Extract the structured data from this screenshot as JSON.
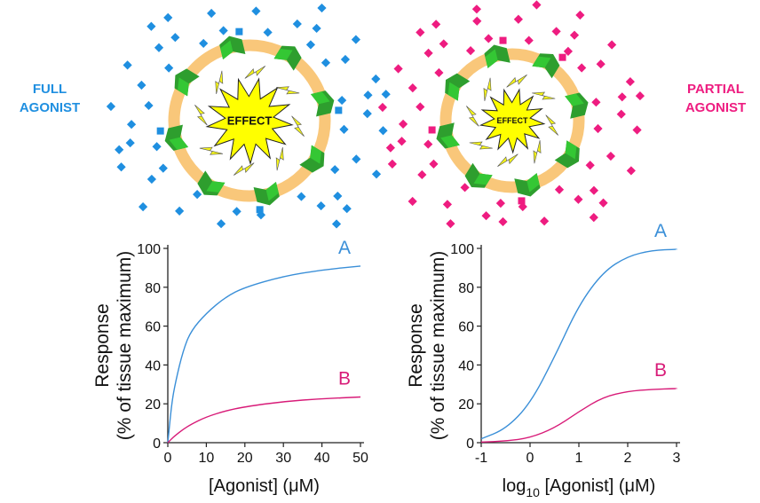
{
  "left_panel": {
    "label_line1": "FULL",
    "label_line2": "AGONIST",
    "label_color": "#1f8fe0",
    "effect_text": "EFFECT"
  },
  "right_panel": {
    "label_line1": "PARTIAL",
    "label_line2": "AGONIST",
    "label_color": "#ee1c80",
    "effect_text": "EFFECT"
  },
  "colors": {
    "membrane": "#f9c77a",
    "receptor_dark": "#2e9e2e",
    "receptor_light": "#34c734",
    "lightning": "#f5f51a",
    "full_agonist": "#1f8fe0",
    "partial_agonist": "#ee1c80",
    "curve_a": "#3a8fd8",
    "curve_b": "#d81b78"
  },
  "chart_data": [
    {
      "type": "line",
      "xlabel": "[Agonist] (μM)",
      "ylabel_line1": "Response",
      "ylabel_line2": "(% of tissue maximum)",
      "xlim": [
        0,
        50
      ],
      "ylim": [
        0,
        100
      ],
      "xticks": [
        0,
        10,
        20,
        30,
        40,
        50
      ],
      "yticks": [
        0,
        20,
        40,
        60,
        80,
        100
      ],
      "grid": false,
      "series": [
        {
          "name": "A",
          "x": [
            0,
            1,
            2,
            4,
            6,
            10,
            15,
            20,
            30,
            40,
            50
          ],
          "y": [
            0,
            20,
            31.3,
            47.6,
            57.5,
            66.7,
            75,
            80,
            85.7,
            88.9,
            90.9
          ]
        },
        {
          "name": "B",
          "x": [
            0,
            1,
            2,
            4,
            6,
            10,
            15,
            20,
            30,
            40,
            50
          ],
          "y": [
            0,
            2,
            3.8,
            6.9,
            9.4,
            13.3,
            16.4,
            18.5,
            21.2,
            22.6,
            23.5
          ]
        }
      ]
    },
    {
      "type": "line",
      "xlabel_pre": "log",
      "xlabel_sub": "10",
      "xlabel_post": " [Agonist] (μM)",
      "ylabel_line1": "Response",
      "ylabel_line2": "(% of tissue maximum)",
      "xlim": [
        -1,
        3
      ],
      "ylim": [
        0,
        100
      ],
      "xticks": [
        -1,
        0,
        1,
        2,
        3
      ],
      "yticks": [
        0,
        20,
        40,
        60,
        80,
        100
      ],
      "grid": false,
      "series": [
        {
          "name": "A",
          "x": [
            -1,
            -0.5,
            0,
            0.5,
            1,
            1.5,
            2,
            2.5,
            3
          ],
          "y": [
            2,
            7,
            20,
            44,
            71,
            88,
            96,
            99,
            99.5
          ]
        },
        {
          "name": "B",
          "x": [
            -1,
            -0.5,
            0,
            0.5,
            1,
            1.5,
            2,
            2.5,
            3
          ],
          "y": [
            0.3,
            0.8,
            2.5,
            7.5,
            16,
            23.5,
            26.5,
            27.5,
            27.8
          ]
        }
      ]
    }
  ]
}
